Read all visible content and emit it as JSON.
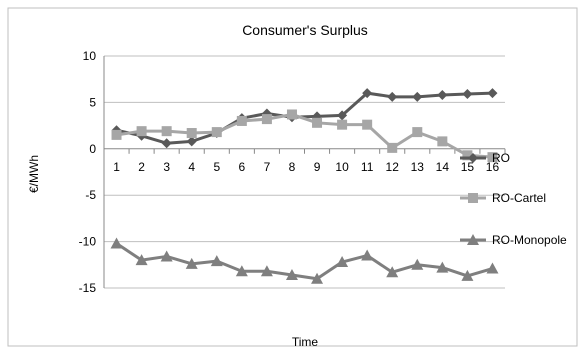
{
  "chart_data": {
    "type": "line",
    "title": "Consumer's Surplus",
    "xlabel": "Time",
    "ylabel": "€/MWh",
    "categories": [
      "1",
      "2",
      "3",
      "4",
      "5",
      "6",
      "7",
      "8",
      "9",
      "10",
      "11",
      "12",
      "13",
      "14",
      "15",
      "16"
    ],
    "ylim": [
      -15,
      10
    ],
    "yticks": [
      10,
      5,
      0,
      -5,
      -10,
      -15
    ],
    "grid": true,
    "legend_position": "right",
    "series": [
      {
        "name": "RO",
        "marker": "diamond",
        "color": "#595959",
        "values": [
          2.0,
          1.4,
          0.6,
          0.8,
          1.7,
          3.3,
          3.8,
          3.4,
          3.5,
          3.6,
          6.0,
          5.6,
          5.6,
          5.8,
          5.9,
          6.0
        ]
      },
      {
        "name": "RO-Cartel",
        "marker": "square",
        "color": "#a6a6a6",
        "values": [
          1.5,
          1.9,
          1.9,
          1.7,
          1.8,
          3.0,
          3.2,
          3.7,
          2.8,
          2.6,
          2.6,
          0.1,
          1.8,
          0.8,
          -0.7,
          -0.9
        ]
      },
      {
        "name": "RO-Monopole",
        "marker": "triangle",
        "color": "#7f7f7f",
        "values": [
          -10.2,
          -12.0,
          -11.6,
          -12.4,
          -12.1,
          -13.2,
          -13.2,
          -13.6,
          -14.0,
          -12.2,
          -11.5,
          -13.3,
          -12.5,
          -12.8,
          -13.7,
          -12.9
        ]
      }
    ]
  }
}
